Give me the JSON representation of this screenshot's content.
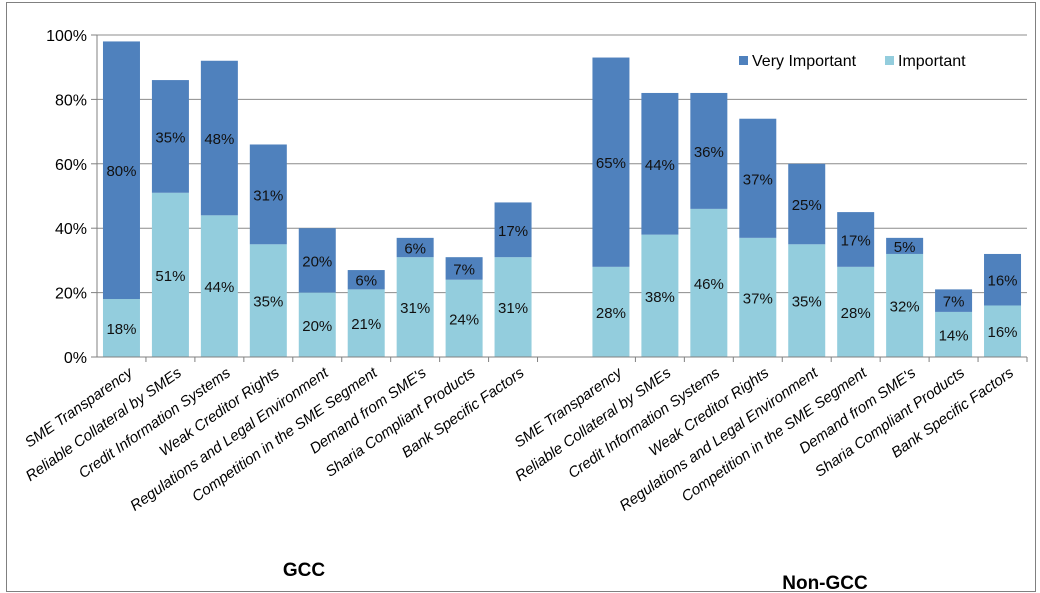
{
  "chart_data": {
    "type": "bar",
    "stacked": true,
    "ylim": [
      0,
      100
    ],
    "yticks": [
      "0%",
      "20%",
      "40%",
      "60%",
      "80%",
      "100%"
    ],
    "grid": true,
    "legend_placement": "top-right",
    "colors": {
      "Very Important": "#4F81BD",
      "Important": "#93CDDD"
    },
    "groups": [
      {
        "name": "GCC",
        "categories": [
          "SME Transparency",
          "Reliable Collateral by SMEs",
          "Credit Information Systems",
          "Weak Creditor Rights",
          "Regulations and Legal Environment",
          "Competition in the SME Segment",
          "Demand from SME's",
          "Sharia Compliant Products",
          "Bank Specific Factors"
        ],
        "series": [
          {
            "name": "Important",
            "values": [
              18,
              51,
              44,
              35,
              20,
              21,
              31,
              24,
              31
            ]
          },
          {
            "name": "Very Important",
            "values": [
              80,
              35,
              48,
              31,
              20,
              6,
              6,
              7,
              17
            ]
          }
        ]
      },
      {
        "name": "Non-GCC",
        "categories": [
          "SME Transparency",
          "Reliable Collateral by SMEs",
          "Credit Information Systems",
          "Weak Creditor Rights",
          "Regulations and Legal Environment",
          "Competition in the SME Segment",
          "Demand from SME's",
          "Sharia Compliant Products",
          "Bank Specific Factors"
        ],
        "series": [
          {
            "name": "Important",
            "values": [
              28,
              38,
              46,
              37,
              35,
              28,
              32,
              14,
              16
            ]
          },
          {
            "name": "Very Important",
            "values": [
              65,
              44,
              36,
              37,
              25,
              17,
              5,
              7,
              16
            ]
          }
        ]
      }
    ],
    "legend": [
      "Very Important",
      "Important"
    ]
  }
}
